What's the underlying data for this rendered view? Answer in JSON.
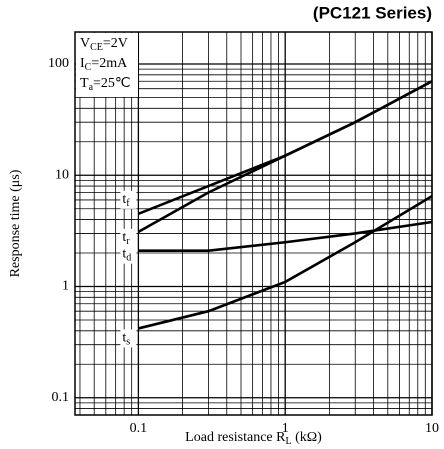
{
  "chart_data": {
    "type": "line",
    "title": "(PC121 Series)",
    "ylabel": "Response time (μs)",
    "xlabel": {
      "main": "Load resistance R",
      "sub": "L",
      "rest": " (kΩ)"
    },
    "annotation": [
      {
        "main": "V",
        "sub": "CE",
        "rest": "=2V"
      },
      {
        "main": "I",
        "sub": "C",
        "rest": "=2mA"
      },
      {
        "main": "T",
        "sub": "a",
        "rest": "=25℃"
      }
    ],
    "log_x": true,
    "log_y": true,
    "grid": true,
    "xlim": [
      0.037,
      10
    ],
    "ylim": [
      0.07,
      194
    ],
    "xticks": [
      0.1,
      1,
      10
    ],
    "yticks": [
      0.1,
      1,
      10,
      100
    ],
    "x_minor_grid": [
      0.04,
      0.05,
      0.06,
      0.07,
      0.08,
      0.09,
      0.2,
      0.3,
      0.4,
      0.5,
      0.6,
      0.7,
      0.8,
      0.9,
      2,
      3,
      4,
      5,
      6,
      7,
      8,
      9
    ],
    "y_minor_grid": [
      0.08,
      0.09,
      0.2,
      0.3,
      0.4,
      0.5,
      0.6,
      0.7,
      0.8,
      0.9,
      2,
      3,
      4,
      5,
      6,
      7,
      8,
      9,
      20,
      30,
      40,
      50,
      60,
      70,
      80,
      90
    ],
    "series": [
      {
        "label": [
          "t",
          "f"
        ],
        "color": "#000000",
        "x": [
          0.1,
          0.3,
          1,
          3,
          10
        ],
        "values": [
          4.5,
          8,
          15,
          30,
          70
        ]
      },
      {
        "label": [
          "t",
          "r"
        ],
        "color": "#000000",
        "x": [
          0.1,
          0.3,
          1,
          3,
          10
        ],
        "values": [
          3.1,
          7,
          15,
          30,
          70
        ]
      },
      {
        "label": [
          "t",
          "d"
        ],
        "color": "#000000",
        "x": [
          0.1,
          0.3,
          1,
          3,
          10
        ],
        "values": [
          2.1,
          2.1,
          2.5,
          3,
          3.8
        ]
      },
      {
        "label": [
          "t",
          "s"
        ],
        "color": "#000000",
        "x": [
          0.1,
          0.3,
          1,
          3,
          10
        ],
        "values": [
          0.42,
          0.6,
          1.1,
          2.5,
          6.5
        ]
      }
    ]
  }
}
